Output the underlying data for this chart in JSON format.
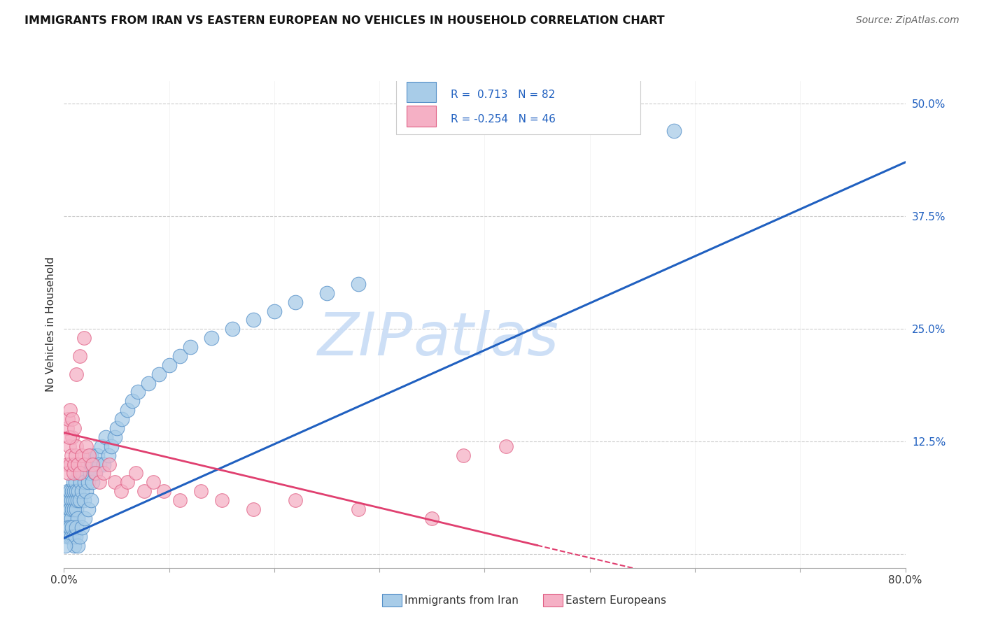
{
  "title": "IMMIGRANTS FROM IRAN VS EASTERN EUROPEAN NO VEHICLES IN HOUSEHOLD CORRELATION CHART",
  "source": "Source: ZipAtlas.com",
  "ylabel": "No Vehicles in Household",
  "xmin": 0.0,
  "xmax": 0.8,
  "ymin": -0.015,
  "ymax": 0.525,
  "ytick_vals": [
    0.0,
    0.125,
    0.25,
    0.375,
    0.5
  ],
  "ytick_labels": [
    "",
    "12.5%",
    "25.0%",
    "37.5%",
    "50.0%"
  ],
  "xtick_vals": [
    0.0,
    0.1,
    0.2,
    0.3,
    0.4,
    0.5,
    0.6,
    0.7,
    0.8
  ],
  "xtick_labels": [
    "0.0%",
    "",
    "",
    "",
    "",
    "",
    "",
    "",
    "80.0%"
  ],
  "legend_r1": "0.713",
  "legend_n1": "82",
  "legend_r2": "-0.254",
  "legend_n2": "46",
  "series1_color": "#a8cce8",
  "series2_color": "#f5b0c5",
  "series1_edge": "#5590c8",
  "series2_edge": "#e06085",
  "line1_color": "#2060c0",
  "line2_color": "#e04070",
  "blue_text": "#2060c0",
  "bg_color": "#ffffff",
  "grid_color": "#cccccc",
  "watermark_color": "#c5daf5",
  "line1_x0": 0.0,
  "line1_y0": 0.018,
  "line1_x1": 0.8,
  "line1_y1": 0.435,
  "line2_x0": 0.0,
  "line2_y0": 0.135,
  "line2_x1": 0.45,
  "line2_y1": 0.01,
  "line2_dash_x0": 0.45,
  "line2_dash_x1": 0.8,
  "iran_x": [
    0.002,
    0.003,
    0.003,
    0.004,
    0.004,
    0.005,
    0.005,
    0.006,
    0.006,
    0.007,
    0.007,
    0.008,
    0.008,
    0.009,
    0.009,
    0.01,
    0.01,
    0.011,
    0.011,
    0.012,
    0.012,
    0.013,
    0.013,
    0.014,
    0.014,
    0.015,
    0.016,
    0.017,
    0.018,
    0.019,
    0.02,
    0.021,
    0.022,
    0.023,
    0.025,
    0.026,
    0.027,
    0.028,
    0.03,
    0.032,
    0.034,
    0.036,
    0.038,
    0.04,
    0.042,
    0.045,
    0.048,
    0.05,
    0.055,
    0.06,
    0.065,
    0.07,
    0.08,
    0.09,
    0.1,
    0.11,
    0.12,
    0.14,
    0.16,
    0.18,
    0.2,
    0.22,
    0.25,
    0.28,
    0.003,
    0.004,
    0.005,
    0.006,
    0.007,
    0.008,
    0.009,
    0.01,
    0.011,
    0.012,
    0.013,
    0.015,
    0.017,
    0.02,
    0.023,
    0.026,
    0.58,
    0.001
  ],
  "iran_y": [
    0.05,
    0.04,
    0.06,
    0.03,
    0.07,
    0.04,
    0.06,
    0.05,
    0.07,
    0.04,
    0.06,
    0.05,
    0.07,
    0.06,
    0.08,
    0.05,
    0.07,
    0.06,
    0.08,
    0.05,
    0.07,
    0.06,
    0.04,
    0.07,
    0.09,
    0.06,
    0.08,
    0.07,
    0.09,
    0.06,
    0.08,
    0.07,
    0.1,
    0.08,
    0.09,
    0.11,
    0.08,
    0.1,
    0.09,
    0.11,
    0.1,
    0.12,
    0.1,
    0.13,
    0.11,
    0.12,
    0.13,
    0.14,
    0.15,
    0.16,
    0.17,
    0.18,
    0.19,
    0.2,
    0.21,
    0.22,
    0.23,
    0.24,
    0.25,
    0.26,
    0.27,
    0.28,
    0.29,
    0.3,
    0.02,
    0.03,
    0.02,
    0.03,
    0.02,
    0.03,
    0.02,
    0.01,
    0.02,
    0.03,
    0.01,
    0.02,
    0.03,
    0.04,
    0.05,
    0.06,
    0.47,
    0.01
  ],
  "eastern_x": [
    0.003,
    0.004,
    0.005,
    0.006,
    0.007,
    0.008,
    0.009,
    0.01,
    0.011,
    0.012,
    0.013,
    0.015,
    0.017,
    0.019,
    0.021,
    0.024,
    0.027,
    0.03,
    0.034,
    0.038,
    0.043,
    0.048,
    0.054,
    0.06,
    0.068,
    0.076,
    0.085,
    0.095,
    0.11,
    0.13,
    0.15,
    0.18,
    0.22,
    0.28,
    0.35,
    0.38,
    0.42,
    0.003,
    0.004,
    0.005,
    0.006,
    0.008,
    0.01,
    0.012,
    0.015,
    0.019
  ],
  "eastern_y": [
    0.1,
    0.09,
    0.12,
    0.1,
    0.11,
    0.13,
    0.09,
    0.1,
    0.11,
    0.12,
    0.1,
    0.09,
    0.11,
    0.1,
    0.12,
    0.11,
    0.1,
    0.09,
    0.08,
    0.09,
    0.1,
    0.08,
    0.07,
    0.08,
    0.09,
    0.07,
    0.08,
    0.07,
    0.06,
    0.07,
    0.06,
    0.05,
    0.06,
    0.05,
    0.04,
    0.11,
    0.12,
    0.14,
    0.15,
    0.13,
    0.16,
    0.15,
    0.14,
    0.2,
    0.22,
    0.24
  ]
}
